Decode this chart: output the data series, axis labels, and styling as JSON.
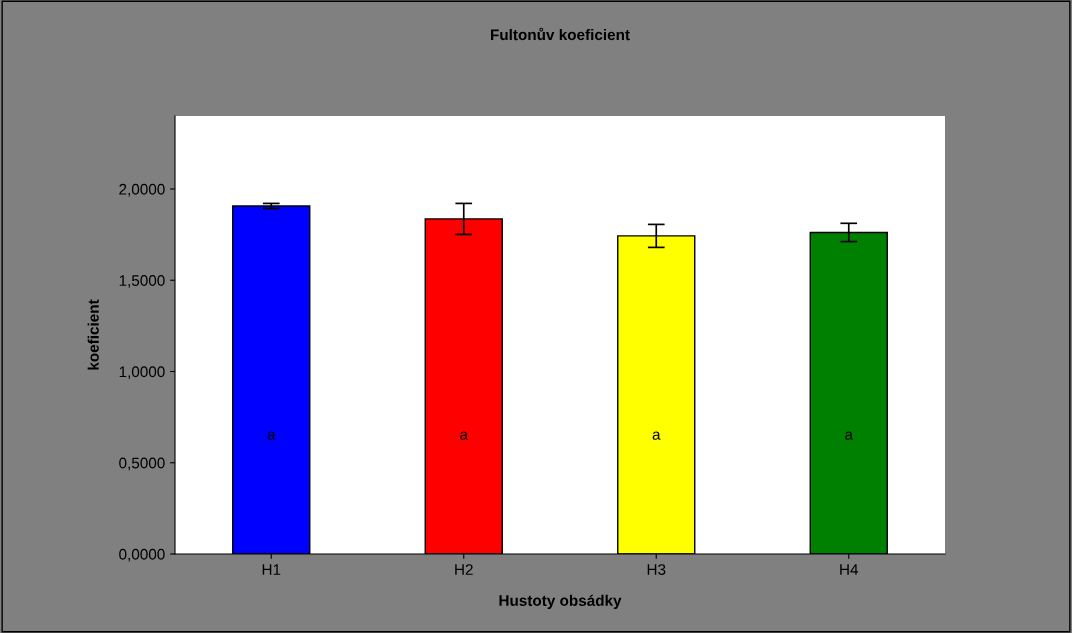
{
  "chart_data": {
    "type": "bar",
    "title": "Fultonův koeficient",
    "xlabel": "Hustoty obsádky",
    "ylabel": "koeficient",
    "categories": [
      "H1",
      "H2",
      "H3",
      "H4"
    ],
    "values": [
      1.907,
      1.836,
      1.743,
      1.762
    ],
    "colors": [
      "#0000ff",
      "#ff0000",
      "#ffff00",
      "#008000"
    ],
    "errors": [
      0.014,
      0.085,
      0.063,
      0.05
    ],
    "ylim": [
      0,
      2.4
    ],
    "yticks": [
      {
        "value": 0,
        "label": "0,0000"
      },
      {
        "value": 0.5,
        "label": "0,5000"
      },
      {
        "value": 1.0,
        "label": "1,0000"
      },
      {
        "value": 1.5,
        "label": "1,5000"
      },
      {
        "value": 2.0,
        "label": "2,0000"
      }
    ],
    "annotations": [
      "a",
      "a",
      "a",
      "a"
    ],
    "grid": false,
    "legend": false
  }
}
